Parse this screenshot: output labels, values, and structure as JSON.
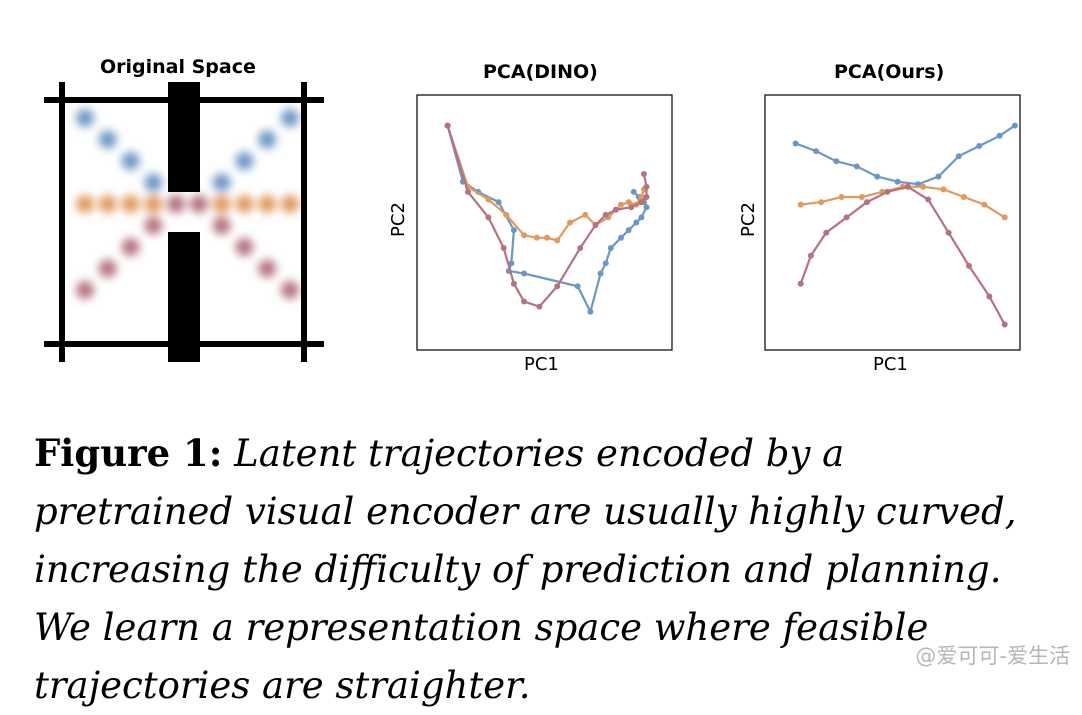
{
  "colors": {
    "blue": "#6c97c4",
    "orange": "#e19a5e",
    "pink": "#b5737f"
  },
  "chart_data": [
    {
      "type": "diagram",
      "title": "Original Space",
      "series": [
        {
          "name": "blue",
          "x": [
            0,
            1,
            2,
            3,
            4,
            5,
            6,
            7,
            8,
            9
          ],
          "y": [
            9,
            8,
            7,
            6,
            5,
            5,
            6,
            7,
            8,
            9
          ]
        },
        {
          "name": "orange",
          "x": [
            0,
            1,
            2,
            3,
            4,
            5,
            6,
            7,
            8,
            9
          ],
          "y": [
            5,
            5,
            5,
            5,
            5,
            5,
            5,
            5,
            5,
            5
          ]
        },
        {
          "name": "pink",
          "x": [
            0,
            1,
            2,
            3,
            4,
            5,
            6,
            7,
            8,
            9
          ],
          "y": [
            1,
            2,
            3,
            4,
            5,
            5,
            4,
            3,
            2,
            1
          ]
        }
      ]
    },
    {
      "type": "line",
      "title": "PCA(DINO)",
      "xlabel": "PC1",
      "ylabel": "PC2",
      "xlim": [
        0,
        100
      ],
      "ylim": [
        0,
        100
      ],
      "series": [
        {
          "name": "blue",
          "x": [
            12,
            18,
            24,
            32,
            38,
            37,
            36,
            42,
            63,
            68,
            72,
            74,
            76,
            80,
            83,
            86,
            88,
            90,
            89,
            87,
            85
          ],
          "y": [
            88,
            66,
            62,
            58,
            47,
            34,
            31,
            30,
            25,
            15,
            30,
            34,
            40,
            44,
            47,
            50,
            52,
            56,
            58,
            60,
            62
          ]
        },
        {
          "name": "orange",
          "x": [
            12,
            20,
            28,
            35,
            42,
            47,
            51,
            55,
            60,
            66,
            70,
            75,
            80,
            83,
            86,
            88,
            89
          ],
          "y": [
            88,
            64,
            59,
            53,
            45,
            44,
            44,
            43,
            50,
            53,
            49,
            52,
            57,
            58,
            57,
            60,
            63
          ]
        },
        {
          "name": "pink",
          "x": [
            12,
            20,
            28,
            34,
            38,
            42,
            48,
            55,
            64,
            70,
            74,
            78,
            84,
            88,
            90,
            90,
            89
          ],
          "y": [
            88,
            62,
            52,
            40,
            26,
            19,
            17,
            25,
            40,
            49,
            53,
            55,
            56,
            58,
            60,
            64,
            69
          ]
        }
      ]
    },
    {
      "type": "line",
      "title": "PCA(Ours)",
      "xlabel": "PC1",
      "ylabel": "PC2",
      "xlim": [
        0,
        100
      ],
      "ylim": [
        0,
        100
      ],
      "series": [
        {
          "name": "blue",
          "x": [
            12,
            20,
            28,
            36,
            44,
            52,
            60,
            68,
            76,
            84,
            92,
            98
          ],
          "y": [
            81,
            78,
            74,
            72,
            68,
            66,
            65,
            68,
            76,
            80,
            84,
            88
          ]
        },
        {
          "name": "orange",
          "x": [
            14,
            22,
            30,
            38,
            46,
            54,
            62,
            70,
            78,
            86,
            94
          ],
          "y": [
            57,
            58,
            60,
            60,
            62,
            64,
            64,
            63,
            60,
            57,
            52
          ]
        },
        {
          "name": "pink",
          "x": [
            14,
            18,
            24,
            32,
            40,
            48,
            56,
            64,
            72,
            80,
            88,
            94
          ],
          "y": [
            26,
            37,
            46,
            52,
            58,
            62,
            64,
            59,
            46,
            33,
            21,
            10
          ]
        }
      ]
    }
  ],
  "caption": {
    "label": "Figure 1:",
    "text": " Latent trajectories encoded by a pretrained visual encoder are usually highly curved, increasing the difficulty of prediction and planning. We learn a representation space where feasible trajectories are straighter."
  },
  "watermark": "@爱可可-爱生活"
}
